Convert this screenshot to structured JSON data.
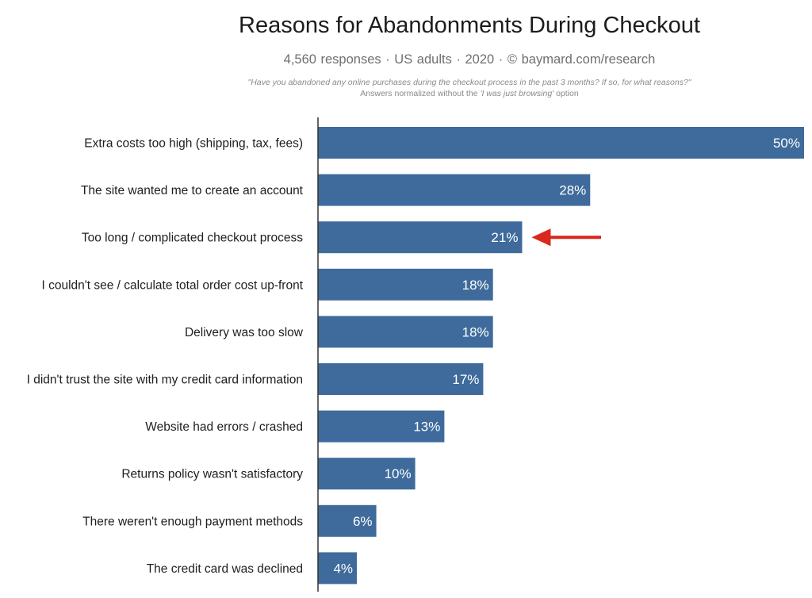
{
  "header": {
    "title": "Reasons for Abandonments During Checkout",
    "subtitle": "4,560 responses  ·  US adults  ·  2020  ·  ©  baymard.com/research",
    "question": "\"Have you abandoned any online purchases during the checkout process in the past 3 months? If so, for what reasons?\"",
    "note_prefix": "Answers normalized without the ",
    "note_option": "'I was just browsing'",
    "note_suffix": " option"
  },
  "colors": {
    "bar": "#3e6b9b",
    "arrow": "#d9281c",
    "axis": "#333333"
  },
  "chart_data": {
    "type": "bar",
    "orientation": "horizontal",
    "categories": [
      "Extra costs too high (shipping, tax, fees)",
      "The site wanted me to create an account",
      "Too long / complicated checkout process",
      "I couldn't see / calculate total order cost up-front",
      "Delivery was too slow",
      "I didn't trust the site with my credit card information",
      "Website had errors / crashed",
      "Returns policy wasn't satisfactory",
      "There weren't enough payment methods",
      "The credit card was declined"
    ],
    "values": [
      50,
      28,
      21,
      18,
      18,
      17,
      13,
      10,
      6,
      4
    ],
    "value_labels": [
      "50%",
      "28%",
      "21%",
      "18%",
      "18%",
      "17%",
      "13%",
      "10%",
      "6%",
      "4%"
    ],
    "value_unit": "%",
    "xlim": [
      0,
      50
    ],
    "grid": false,
    "legend": "none",
    "highlight": {
      "category_index": 2,
      "marker": "red arrow pointing left"
    }
  }
}
